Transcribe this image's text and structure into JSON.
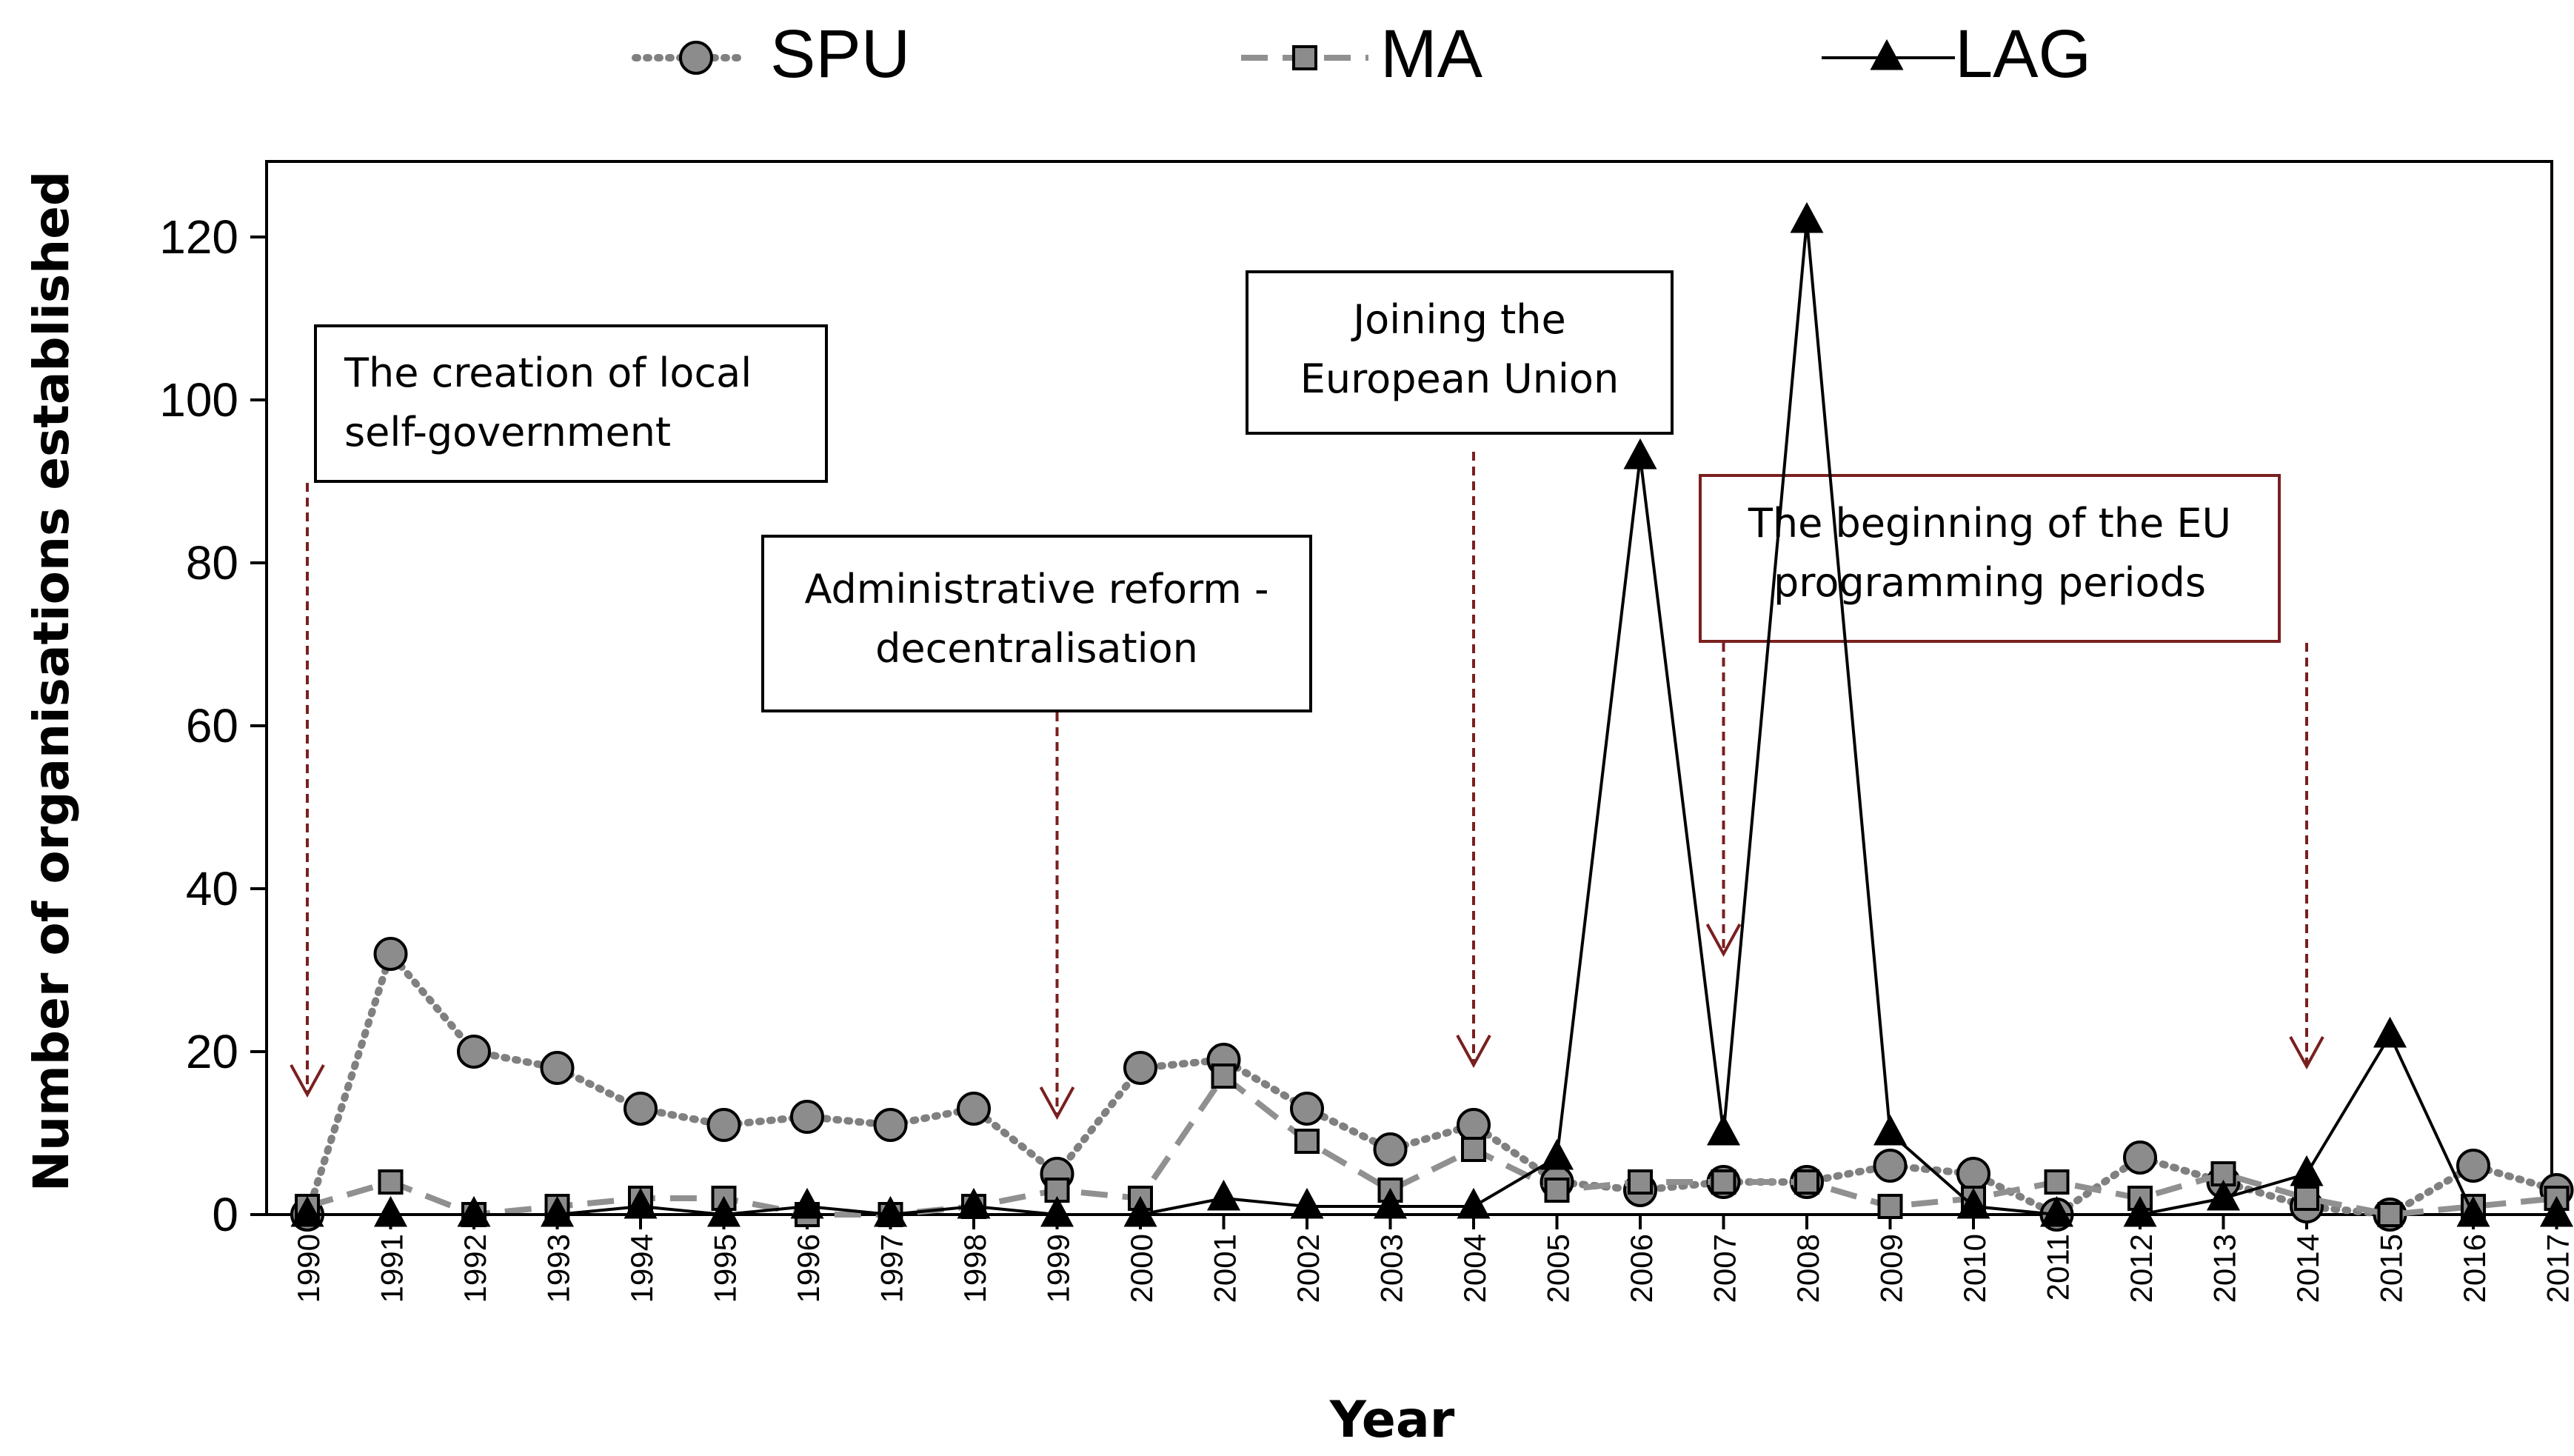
{
  "chart_data": {
    "type": "line",
    "title": "",
    "xlabel": "Year",
    "ylabel": "Number of organisations established",
    "ylim": [
      0,
      130
    ],
    "yticks": [
      0,
      20,
      40,
      60,
      80,
      100,
      120
    ],
    "grid": false,
    "legend_position": "top",
    "categories": [
      "1990",
      "1991",
      "1992",
      "1993",
      "1994",
      "1995",
      "1996",
      "1997",
      "1998",
      "1999",
      "2000",
      "2001",
      "2002",
      "2003",
      "2004",
      "2005",
      "2006",
      "2007",
      "2008",
      "2009",
      "2010",
      "2011",
      "2012",
      "2013",
      "2014",
      "2015",
      "2016",
      "2017"
    ],
    "series": [
      {
        "name": "SPU",
        "line_style": "dotted",
        "marker": "circle",
        "color": "#808080",
        "values": [
          0,
          32,
          20,
          18,
          13,
          11,
          12,
          11,
          13,
          5,
          18,
          19,
          13,
          8,
          11,
          4,
          3,
          4,
          4,
          6,
          5,
          0,
          7,
          4,
          1,
          0,
          6,
          3
        ]
      },
      {
        "name": "MA",
        "line_style": "dashed",
        "marker": "square",
        "color": "#909090",
        "values": [
          1,
          4,
          0,
          1,
          2,
          2,
          0,
          0,
          1,
          3,
          2,
          17,
          9,
          3,
          8,
          3,
          4,
          4,
          4,
          1,
          2,
          4,
          2,
          5,
          2,
          0,
          1,
          2
        ]
      },
      {
        "name": "LAG",
        "line_style": "solid",
        "marker": "triangle",
        "color": "#000000",
        "values": [
          0,
          0,
          0,
          0,
          1,
          0,
          1,
          0,
          1,
          0,
          0,
          2,
          1,
          1,
          1,
          7,
          93,
          10,
          122,
          10,
          1,
          0,
          0,
          2,
          5,
          22,
          0,
          0
        ]
      }
    ],
    "annotations": [
      {
        "id": "local-self-government",
        "lines": [
          "The creation of local",
          "self-government"
        ],
        "year": "1990",
        "border_color": "#000000"
      },
      {
        "id": "administrative-reform",
        "lines": [
          "Administrative reform -",
          "decentralisation"
        ],
        "year": "1999",
        "border_color": "#000000"
      },
      {
        "id": "joining-eu",
        "lines": [
          "Joining the",
          "European Union"
        ],
        "year": "2004",
        "border_color": "#000000"
      },
      {
        "id": "eu-programming",
        "lines": [
          "The beginning of the EU",
          "programming periods"
        ],
        "years": [
          "2007",
          "2014"
        ],
        "border_color": "#7a1f1f"
      }
    ],
    "arrow_color": "#7a1f1f"
  }
}
